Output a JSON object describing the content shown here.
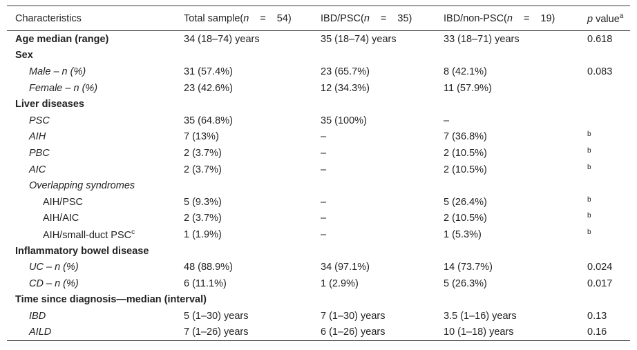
{
  "table": {
    "header": [
      [
        {
          "t": "Characteristics"
        }
      ],
      [
        {
          "t": "Total sample("
        },
        {
          "t": "n",
          "style": "italic"
        },
        {
          "t": "=",
          "style": "spaced"
        },
        {
          "t": "54)"
        }
      ],
      [
        {
          "t": "IBD/PSC("
        },
        {
          "t": "n",
          "style": "italic"
        },
        {
          "t": "=",
          "style": "spaced"
        },
        {
          "t": "35)"
        }
      ],
      [
        {
          "t": "IBD/non-PSC("
        },
        {
          "t": "n",
          "style": "italic"
        },
        {
          "t": "=",
          "style": "spaced"
        },
        {
          "t": "19)"
        }
      ],
      [
        {
          "t": "p",
          "style": "italic"
        },
        {
          "t": " value"
        },
        {
          "t": "a",
          "style": "sup"
        }
      ]
    ],
    "rows": [
      {
        "kind": "section",
        "label": "Age median (range)",
        "cells": [
          "34 (18–74) years",
          "35 (18–74) years",
          "33 (18–71) years",
          "0.618"
        ]
      },
      {
        "kind": "section",
        "label": "Sex",
        "cells": null
      },
      {
        "kind": "sub",
        "label": "Male – n (%)",
        "cells": [
          "31 (57.4%)",
          "23 (65.7%)",
          "8 (42.1%)",
          "0.083"
        ]
      },
      {
        "kind": "sub",
        "label": "Female – n (%)",
        "cells": [
          "23 (42.6%)",
          "12 (34.3%)",
          "11 (57.9%)",
          null
        ]
      },
      {
        "kind": "section",
        "label": "Liver diseases",
        "cells": null
      },
      {
        "kind": "sub",
        "label": "PSC",
        "cells": [
          "35 (64.8%)",
          "35 (100%)",
          "–",
          null
        ]
      },
      {
        "kind": "sub",
        "label": "AIH",
        "cells": [
          "7 (13%)",
          "–",
          "7 (36.8%)",
          {
            "sup": "b"
          }
        ]
      },
      {
        "kind": "sub",
        "label": "PBC",
        "cells": [
          "2 (3.7%)",
          "–",
          "2 (10.5%)",
          {
            "sup": "b"
          }
        ]
      },
      {
        "kind": "sub",
        "label": "AIC",
        "cells": [
          "2 (3.7%)",
          "–",
          "2 (10.5%)",
          {
            "sup": "b"
          }
        ]
      },
      {
        "kind": "sub",
        "label": "Overlapping syndromes",
        "cells": null
      },
      {
        "kind": "subsub",
        "label": "AIH/PSC",
        "cells": [
          "5 (9.3%)",
          "–",
          "5 (26.4%)",
          {
            "sup": "b"
          }
        ]
      },
      {
        "kind": "subsub",
        "label": "AIH/AIC",
        "cells": [
          "2 (3.7%)",
          "–",
          "2 (10.5%)",
          {
            "sup": "b"
          }
        ]
      },
      {
        "kind": "subsub",
        "label": "AIH/small-duct PSC",
        "label_sup": "c",
        "cells": [
          "1 (1.9%)",
          "–",
          "1 (5.3%)",
          {
            "sup": "b"
          }
        ]
      },
      {
        "kind": "section",
        "label": "Inflammatory bowel disease",
        "cells": null
      },
      {
        "kind": "sub",
        "label": "UC – n (%)",
        "cells": [
          "48 (88.9%)",
          "34 (97.1%)",
          "14 (73.7%)",
          "0.024"
        ]
      },
      {
        "kind": "sub",
        "label": "CD – n (%)",
        "cells": [
          "6 (11.1%)",
          "1 (2.9%)",
          "5 (26.3%)",
          "0.017"
        ]
      },
      {
        "kind": "section",
        "label": "Time since diagnosis—median (interval)",
        "cells": null
      },
      {
        "kind": "sub",
        "label": "IBD",
        "cells": [
          "5 (1–30) years",
          "7 (1–30) years",
          "3.5 (1–16) years",
          "0.13"
        ]
      },
      {
        "kind": "sub",
        "label": "AILD",
        "cells": [
          "7 (1–26) years",
          "6 (1–26) years",
          "10 (1–18) years",
          "0.16"
        ]
      }
    ]
  }
}
